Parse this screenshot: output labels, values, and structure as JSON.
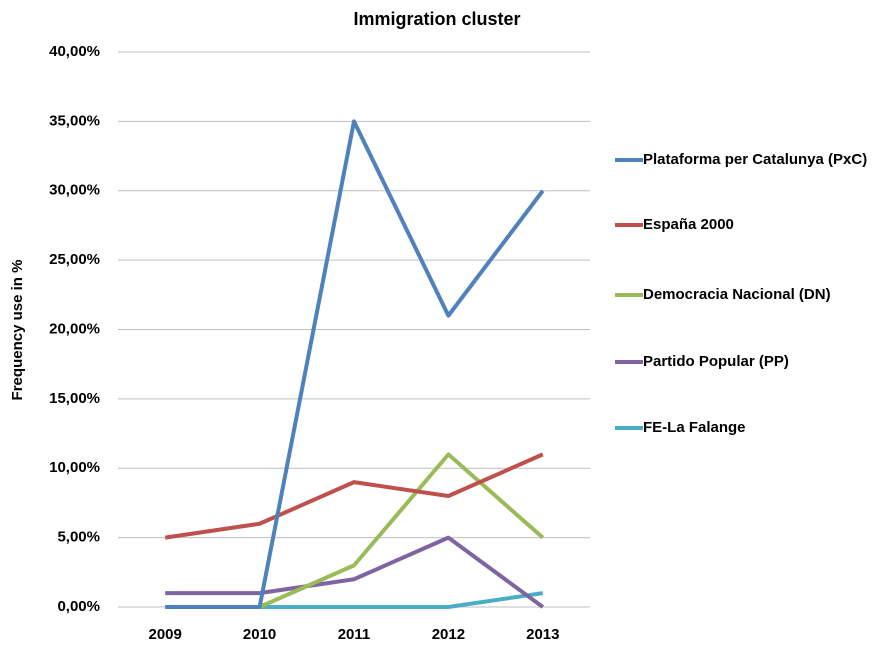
{
  "chart_data": {
    "type": "line",
    "title": "Immigration cluster",
    "y_label": "Frequency use in %",
    "categories": [
      "2009",
      "2010",
      "2011",
      "2012",
      "2013"
    ],
    "series": [
      {
        "name": "Plataforma per Catalunya (PxC)",
        "color": "#4f81bd",
        "values": [
          0,
          0,
          35,
          21,
          30
        ]
      },
      {
        "name": "España 2000",
        "color": "#c0504d",
        "values": [
          5,
          6,
          9,
          8,
          11
        ]
      },
      {
        "name": "Democracia Nacional (DN)",
        "color": "#9bbb59",
        "values": [
          0,
          0,
          3,
          11,
          5
        ]
      },
      {
        "name": "Partido Popular (PP)",
        "color": "#8064a2",
        "values": [
          1,
          1,
          2,
          5,
          0
        ]
      },
      {
        "name": "FE-La Falange",
        "color": "#4bacc6",
        "values": [
          0,
          0,
          0,
          0,
          1
        ]
      }
    ],
    "ylim": [
      0,
      40
    ],
    "yticks": [
      {
        "value": 0,
        "label": "0,00%"
      },
      {
        "value": 5,
        "label": "5,00%"
      },
      {
        "value": 10,
        "label": "10,00%"
      },
      {
        "value": 15,
        "label": "15,00%"
      },
      {
        "value": 20,
        "label": "20,00%"
      },
      {
        "value": 25,
        "label": "25,00%"
      },
      {
        "value": 30,
        "label": "30,00%"
      },
      {
        "value": 35,
        "label": "35,00%"
      },
      {
        "value": 40,
        "label": "40,00%"
      }
    ],
    "grid": true,
    "legend": "right"
  }
}
